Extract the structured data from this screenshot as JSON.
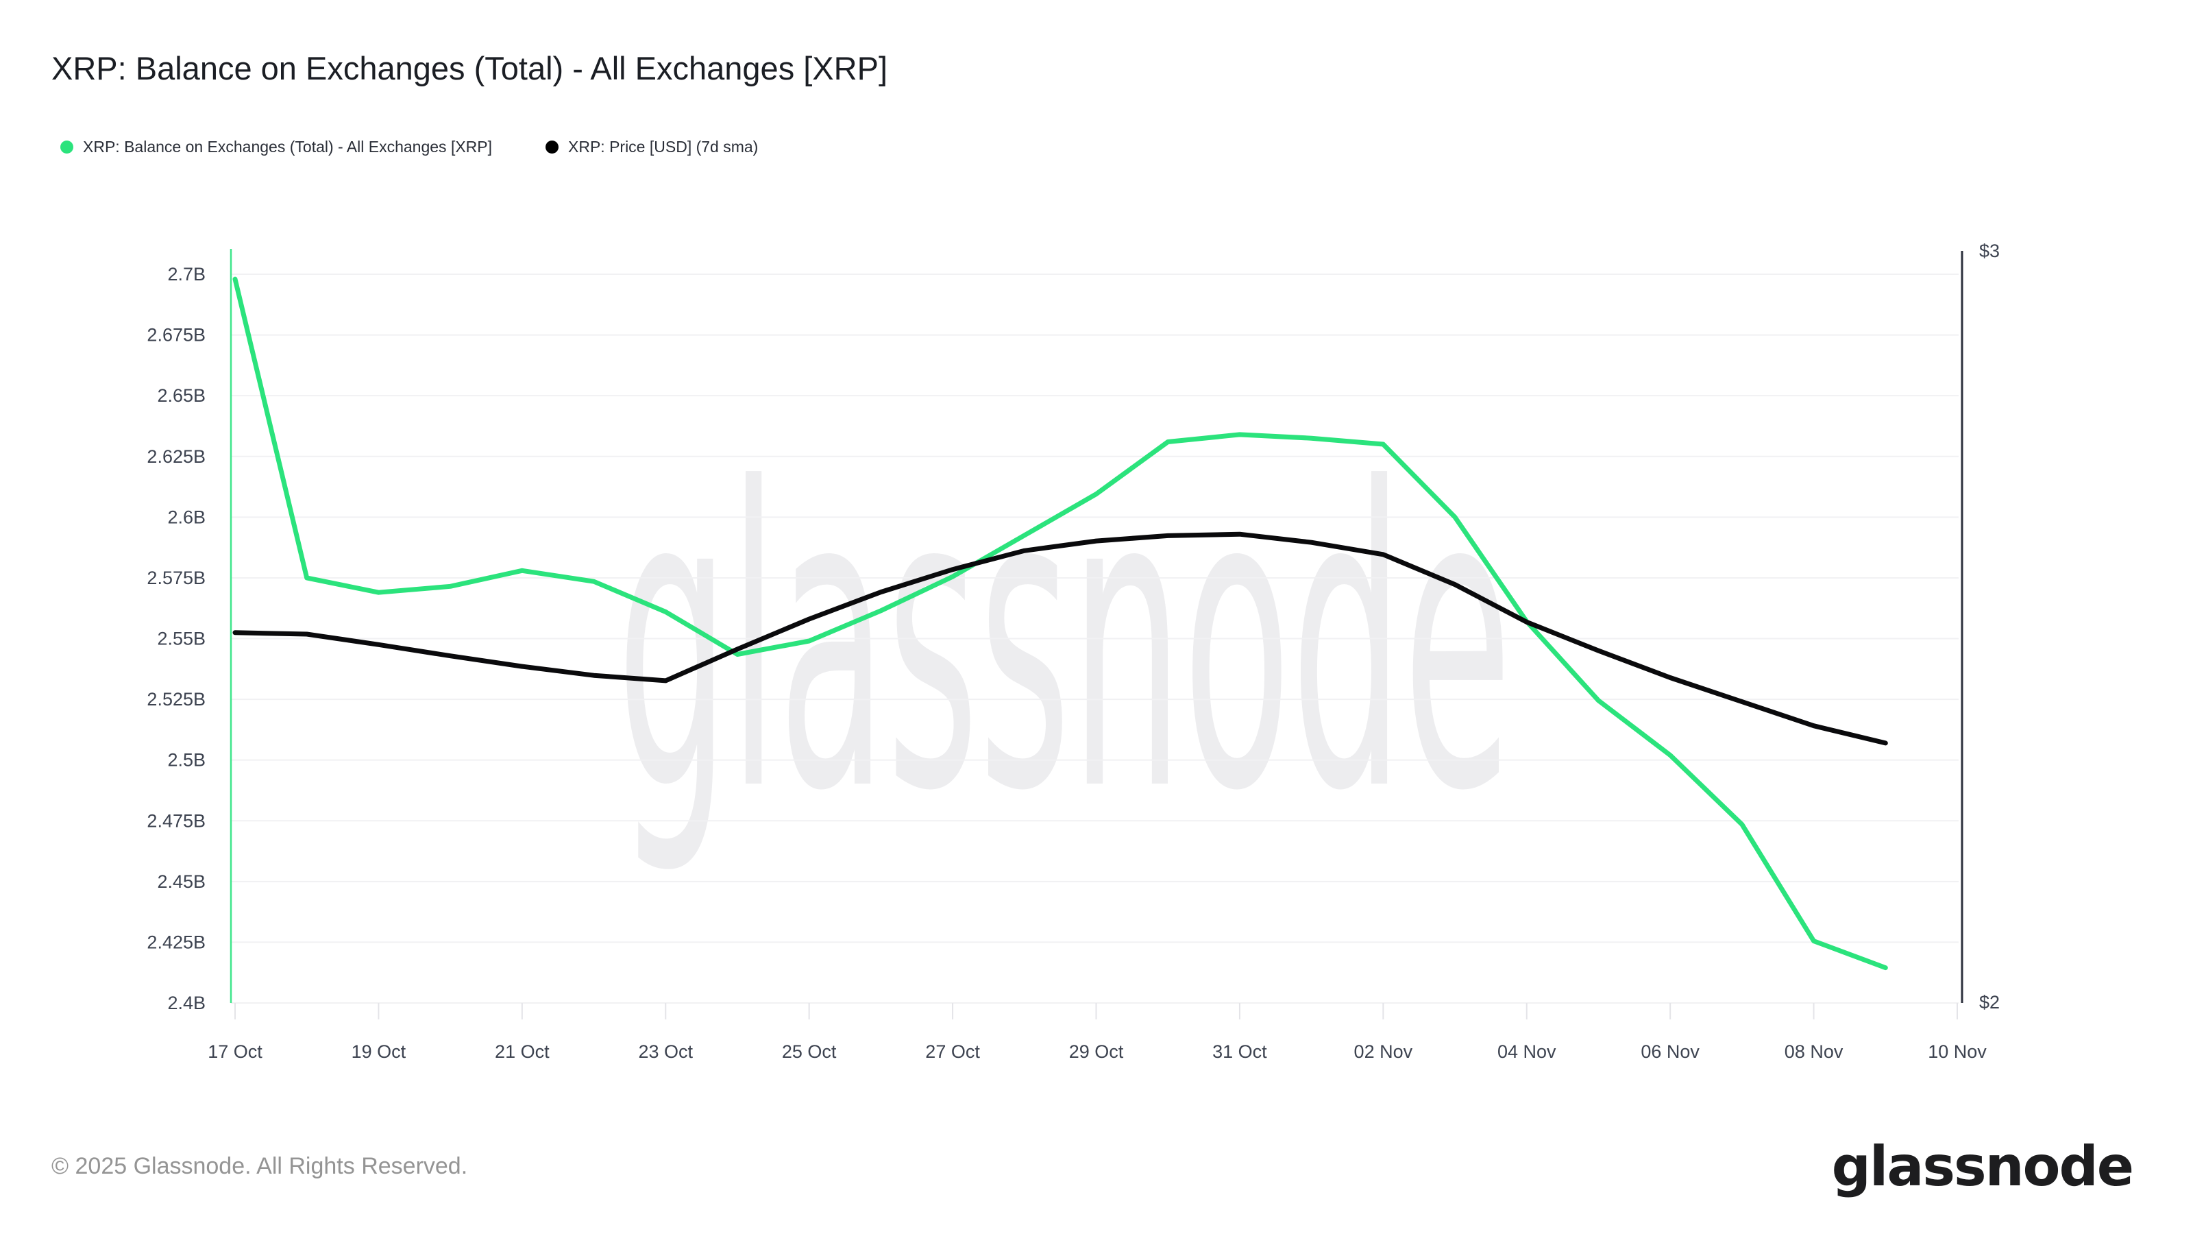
{
  "header": {
    "title": "XRP: Balance on Exchanges (Total) - All Exchanges [XRP]"
  },
  "legend": {
    "items": [
      {
        "label": "XRP: Balance on Exchanges (Total) - All Exchanges [XRP]",
        "color": "#2be37c"
      },
      {
        "label": "XRP: Price [USD] (7d sma)",
        "color": "#000000"
      }
    ]
  },
  "watermark": "glassnode",
  "footer": {
    "copyright": "© 2025 Glassnode. All Rights Reserved.",
    "logo_text": "glassnode"
  },
  "chart_data": {
    "type": "line",
    "title": "XRP: Balance on Exchanges (Total) - All Exchanges [XRP]",
    "x": [
      "17 Oct",
      "18 Oct",
      "19 Oct",
      "20 Oct",
      "21 Oct",
      "22 Oct",
      "23 Oct",
      "24 Oct",
      "25 Oct",
      "26 Oct",
      "27 Oct",
      "28 Oct",
      "29 Oct",
      "30 Oct",
      "31 Oct",
      "01 Nov",
      "02 Nov",
      "03 Nov",
      "04 Nov",
      "05 Nov",
      "06 Nov",
      "07 Nov",
      "08 Nov",
      "09 Nov"
    ],
    "x_tick_labels": [
      "17 Oct",
      "19 Oct",
      "21 Oct",
      "23 Oct",
      "25 Oct",
      "27 Oct",
      "29 Oct",
      "31 Oct",
      "02 Nov",
      "04 Nov",
      "06 Nov",
      "08 Nov",
      "10 Nov"
    ],
    "grid": true,
    "legend_position": "top-left",
    "series": [
      {
        "name": "XRP: Balance on Exchanges (Total) - All Exchanges [XRP]",
        "axis": "left",
        "unit": "XRP (billions)",
        "color": "#2be37c",
        "values": [
          2.698,
          2.575,
          2.569,
          2.5715,
          2.578,
          2.5735,
          2.561,
          2.5435,
          2.549,
          2.5615,
          2.5755,
          2.5925,
          2.6095,
          2.631,
          2.634,
          2.6325,
          2.63,
          2.6,
          2.557,
          2.5245,
          2.502,
          2.4735,
          2.4255,
          2.4145
        ]
      },
      {
        "name": "XRP: Price [USD] (7d sma)",
        "axis": "right",
        "unit": "USD",
        "color": "#0a0a0c",
        "values": [
          2.492,
          2.49,
          2.476,
          2.461,
          2.447,
          2.435,
          2.428,
          2.47,
          2.51,
          2.546,
          2.576,
          2.601,
          2.614,
          2.621,
          2.623,
          2.612,
          2.596,
          2.556,
          2.506,
          2.468,
          2.432,
          2.4,
          2.368,
          2.345
        ]
      }
    ],
    "left_axis": {
      "min": 2.4,
      "max": 2.7,
      "ticks": [
        {
          "value": 2.4,
          "label": "2.4B"
        },
        {
          "value": 2.425,
          "label": "2.425B"
        },
        {
          "value": 2.45,
          "label": "2.45B"
        },
        {
          "value": 2.475,
          "label": "2.475B"
        },
        {
          "value": 2.5,
          "label": "2.5B"
        },
        {
          "value": 2.525,
          "label": "2.525B"
        },
        {
          "value": 2.55,
          "label": "2.55B"
        },
        {
          "value": 2.575,
          "label": "2.575B"
        },
        {
          "value": 2.6,
          "label": "2.6B"
        },
        {
          "value": 2.625,
          "label": "2.625B"
        },
        {
          "value": 2.65,
          "label": "2.65B"
        },
        {
          "value": 2.675,
          "label": "2.675B"
        },
        {
          "value": 2.7,
          "label": "2.7B"
        }
      ]
    },
    "right_axis": {
      "min": 2,
      "max": 3,
      "ticks": [
        {
          "value": 3,
          "label": "$3"
        },
        {
          "value": 2,
          "label": "$2"
        }
      ]
    }
  }
}
